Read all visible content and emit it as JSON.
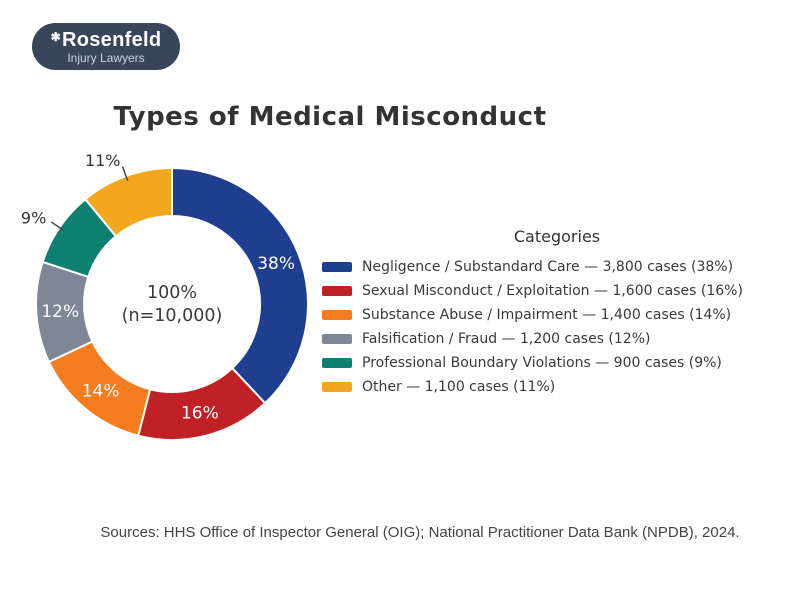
{
  "logo": {
    "star_icon": "✱",
    "name": "Rosenfeld",
    "subtitle": "Injury Lawyers",
    "background_color": "#39455a"
  },
  "title": "Types of Medical Misconduct",
  "sources": "Sources: HHS Office of Inspector General (OIG); National Practitioner Data Bank (NPDB), 2024.",
  "chart_data": {
    "type": "pie",
    "donut": true,
    "title": "Types of Medical Misconduct",
    "legend_title": "Categories",
    "legend_position": "right",
    "center_label": "100%",
    "center_sublabel": "(n=10,000)",
    "total_cases": 10000,
    "start_angle_deg": 90,
    "direction": "clockwise",
    "inside_label_color": "#ffffff",
    "outside_label_color": "#333333",
    "slices": [
      {
        "label": "Negligence / Substandard Care",
        "cases": 3800,
        "percent": 38,
        "color": "#1f3e8f"
      },
      {
        "label": "Sexual Misconduct / Exploitation",
        "cases": 1600,
        "percent": 16,
        "color": "#bf2127"
      },
      {
        "label": "Substance Abuse / Impairment",
        "cases": 1400,
        "percent": 14,
        "color": "#f57d20"
      },
      {
        "label": "Falsification / Fraud",
        "cases": 1200,
        "percent": 12,
        "color": "#7e8795"
      },
      {
        "label": "Professional Boundary Violations",
        "cases": 900,
        "percent": 9,
        "color": "#0e8070"
      },
      {
        "label": "Other",
        "cases": 1100,
        "percent": 11,
        "color": "#f2a71f"
      }
    ],
    "legend_entries": [
      "Negligence / Substandard Care — 3,800 cases (38%)",
      "Sexual Misconduct / Exploitation — 1,600 cases (16%)",
      "Substance Abuse / Impairment — 1,400 cases (14%)",
      "Falsification / Fraud — 1,200 cases (12%)",
      "Professional Boundary Violations — 900 cases (9%)",
      "Other — 1,100 cases (11%)"
    ]
  }
}
